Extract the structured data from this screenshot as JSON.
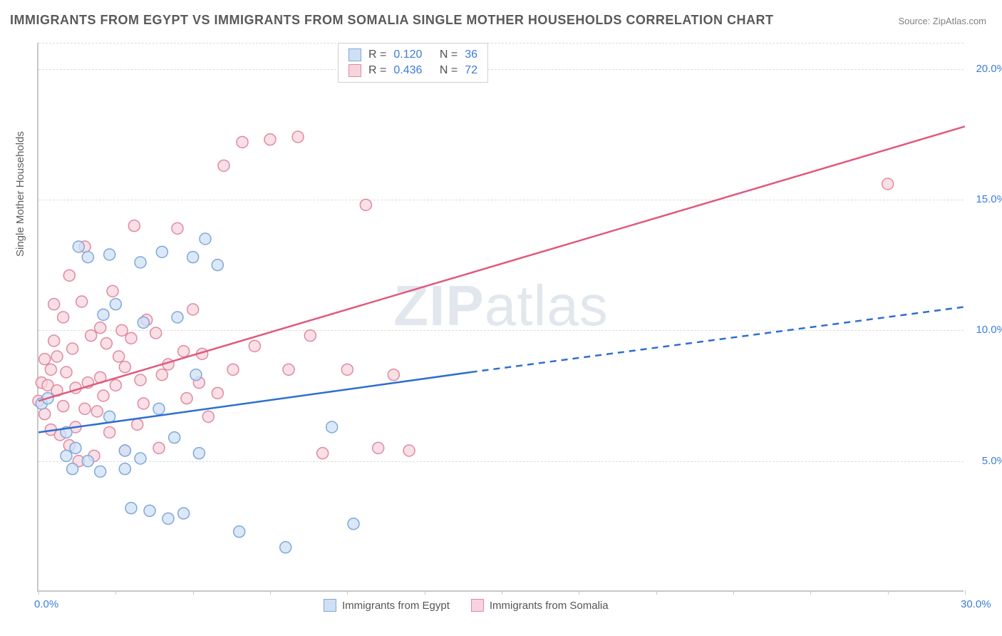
{
  "title": "IMMIGRANTS FROM EGYPT VS IMMIGRANTS FROM SOMALIA SINGLE MOTHER HOUSEHOLDS CORRELATION CHART",
  "source_label": "Source: ZipAtlas.com",
  "y_axis_label": "Single Mother Households",
  "watermark_a": "ZIP",
  "watermark_b": "atlas",
  "chart": {
    "type": "scatter-with-trend",
    "xlim": [
      0,
      30
    ],
    "ylim": [
      0,
      21
    ],
    "x_ticks": [
      0,
      30
    ],
    "x_tick_labels": [
      "0.0%",
      "30.0%"
    ],
    "x_minor_step": 2.5,
    "y_ticks": [
      5,
      10,
      15,
      20
    ],
    "y_tick_labels": [
      "5.0%",
      "10.0%",
      "15.0%",
      "20.0%"
    ],
    "background_color": "#ffffff",
    "grid_color": "#dcdcdc",
    "axis_color": "#c8c8c8",
    "marker_radius": 8,
    "marker_stroke_width": 1.5,
    "series": [
      {
        "name": "Immigrants from Egypt",
        "color_fill": "#cfe0f5",
        "color_stroke": "#7fa8d9",
        "trend_color": "#2e6fd0",
        "trend_width": 2.5,
        "trend_start": [
          0,
          6.1
        ],
        "trend_end_solid": [
          14,
          8.4
        ],
        "trend_end_dash": [
          30,
          10.9
        ],
        "R_label": "R =",
        "R": "0.120",
        "N_label": "N =",
        "N": "36",
        "points": [
          [
            0.1,
            7.2
          ],
          [
            0.3,
            7.4
          ],
          [
            0.9,
            5.2
          ],
          [
            0.9,
            6.1
          ],
          [
            1.1,
            4.7
          ],
          [
            1.2,
            5.5
          ],
          [
            1.3,
            13.2
          ],
          [
            1.6,
            12.8
          ],
          [
            1.6,
            5.0
          ],
          [
            2.0,
            4.6
          ],
          [
            2.1,
            10.6
          ],
          [
            2.3,
            12.9
          ],
          [
            2.3,
            6.7
          ],
          [
            2.5,
            11.0
          ],
          [
            2.8,
            5.4
          ],
          [
            2.8,
            4.7
          ],
          [
            3.0,
            3.2
          ],
          [
            3.3,
            5.1
          ],
          [
            3.3,
            12.6
          ],
          [
            3.4,
            10.3
          ],
          [
            3.6,
            3.1
          ],
          [
            3.9,
            7.0
          ],
          [
            4.0,
            13.0
          ],
          [
            4.2,
            2.8
          ],
          [
            4.4,
            5.9
          ],
          [
            4.5,
            10.5
          ],
          [
            4.7,
            3.0
          ],
          [
            5.0,
            12.8
          ],
          [
            5.1,
            8.3
          ],
          [
            5.2,
            5.3
          ],
          [
            5.4,
            13.5
          ],
          [
            5.8,
            12.5
          ],
          [
            6.5,
            2.3
          ],
          [
            8.0,
            1.7
          ],
          [
            9.5,
            6.3
          ],
          [
            10.2,
            2.6
          ]
        ]
      },
      {
        "name": "Immigrants from Somalia",
        "color_fill": "#f7d4dd",
        "color_stroke": "#e08aa0",
        "trend_color": "#e05a7d",
        "trend_width": 2.5,
        "trend_start": [
          0,
          7.3
        ],
        "trend_end_solid": [
          30,
          17.8
        ],
        "trend_end_dash": null,
        "R_label": "R =",
        "R": "0.436",
        "N_label": "N =",
        "N": "72",
        "points": [
          [
            0.0,
            7.3
          ],
          [
            0.1,
            8.0
          ],
          [
            0.2,
            8.9
          ],
          [
            0.2,
            6.8
          ],
          [
            0.3,
            7.9
          ],
          [
            0.4,
            8.5
          ],
          [
            0.4,
            6.2
          ],
          [
            0.5,
            9.6
          ],
          [
            0.5,
            11.0
          ],
          [
            0.6,
            7.7
          ],
          [
            0.6,
            9.0
          ],
          [
            0.7,
            6.0
          ],
          [
            0.8,
            10.5
          ],
          [
            0.8,
            7.1
          ],
          [
            0.9,
            8.4
          ],
          [
            1.0,
            12.1
          ],
          [
            1.0,
            5.6
          ],
          [
            1.1,
            9.3
          ],
          [
            1.2,
            7.8
          ],
          [
            1.2,
            6.3
          ],
          [
            1.3,
            5.0
          ],
          [
            1.4,
            11.1
          ],
          [
            1.5,
            13.2
          ],
          [
            1.5,
            7.0
          ],
          [
            1.6,
            8.0
          ],
          [
            1.7,
            9.8
          ],
          [
            1.8,
            5.2
          ],
          [
            1.9,
            6.9
          ],
          [
            2.0,
            8.2
          ],
          [
            2.0,
            10.1
          ],
          [
            2.1,
            7.5
          ],
          [
            2.2,
            9.5
          ],
          [
            2.3,
            6.1
          ],
          [
            2.4,
            11.5
          ],
          [
            2.5,
            7.9
          ],
          [
            2.6,
            9.0
          ],
          [
            2.7,
            10.0
          ],
          [
            2.8,
            8.6
          ],
          [
            2.8,
            5.4
          ],
          [
            3.0,
            9.7
          ],
          [
            3.1,
            14.0
          ],
          [
            3.2,
            6.4
          ],
          [
            3.3,
            8.1
          ],
          [
            3.4,
            7.2
          ],
          [
            3.5,
            10.4
          ],
          [
            3.8,
            9.9
          ],
          [
            3.9,
            5.5
          ],
          [
            4.0,
            8.3
          ],
          [
            4.2,
            8.7
          ],
          [
            4.5,
            13.9
          ],
          [
            4.7,
            9.2
          ],
          [
            4.8,
            7.4
          ],
          [
            5.0,
            10.8
          ],
          [
            5.2,
            8.0
          ],
          [
            5.3,
            9.1
          ],
          [
            5.5,
            6.7
          ],
          [
            5.8,
            7.6
          ],
          [
            6.0,
            16.3
          ],
          [
            6.3,
            8.5
          ],
          [
            6.6,
            17.2
          ],
          [
            7.0,
            9.4
          ],
          [
            7.5,
            17.3
          ],
          [
            8.1,
            8.5
          ],
          [
            8.4,
            17.4
          ],
          [
            8.8,
            9.8
          ],
          [
            9.2,
            5.3
          ],
          [
            10.0,
            8.5
          ],
          [
            10.6,
            14.8
          ],
          [
            11.0,
            5.5
          ],
          [
            11.5,
            8.3
          ],
          [
            12.0,
            5.4
          ],
          [
            27.5,
            15.6
          ]
        ]
      }
    ]
  },
  "legend_bottom": [
    "Immigrants from Egypt",
    "Immigrants from Somalia"
  ]
}
